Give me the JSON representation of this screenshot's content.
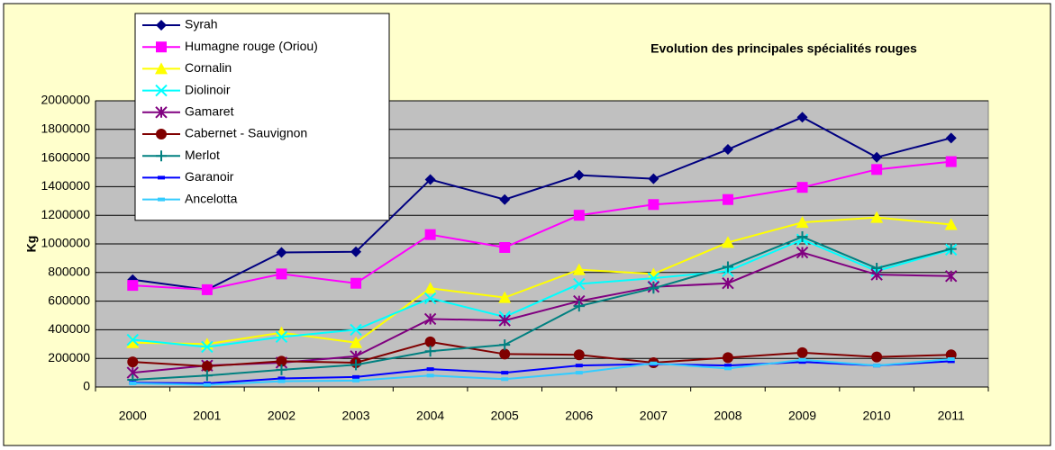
{
  "chart_data": {
    "type": "line",
    "title": "Evolution des principales spécialités rouges",
    "y_label": "Kg",
    "categories": [
      "2000",
      "2001",
      "2002",
      "2003",
      "2004",
      "2005",
      "2006",
      "2007",
      "2008",
      "2009",
      "2010",
      "2011"
    ],
    "ylim": [
      0,
      2000000
    ],
    "yticks": [
      0,
      200000,
      400000,
      600000,
      800000,
      1000000,
      1200000,
      1400000,
      1600000,
      1800000,
      2000000
    ],
    "grid": true,
    "legend": "upper-left",
    "series": [
      {
        "name": "Syrah",
        "color": "#000080",
        "marker": "diamond",
        "values": [
          750000,
          680000,
          940000,
          945000,
          1450000,
          1310000,
          1480000,
          1455000,
          1660000,
          1885000,
          1605000,
          1740000
        ]
      },
      {
        "name": "Humagne rouge (Oriou)",
        "color": "#ff00ff",
        "marker": "square",
        "values": [
          710000,
          680000,
          790000,
          725000,
          1065000,
          975000,
          1200000,
          1275000,
          1310000,
          1395000,
          1520000,
          1575000
        ]
      },
      {
        "name": "Cornalin",
        "color": "#ffff00",
        "marker": "triangle",
        "values": [
          310000,
          300000,
          380000,
          310000,
          690000,
          625000,
          820000,
          790000,
          1010000,
          1150000,
          1185000,
          1135000
        ]
      },
      {
        "name": "Diolinoir",
        "color": "#00ffff",
        "marker": "x",
        "values": [
          330000,
          280000,
          350000,
          400000,
          620000,
          490000,
          720000,
          760000,
          810000,
          1030000,
          810000,
          960000
        ]
      },
      {
        "name": "Gamaret",
        "color": "#800080",
        "marker": "star",
        "values": [
          100000,
          150000,
          170000,
          215000,
          475000,
          465000,
          600000,
          700000,
          725000,
          940000,
          785000,
          775000
        ]
      },
      {
        "name": "Cabernet - Sauvignon",
        "color": "#800000",
        "marker": "circle",
        "values": [
          175000,
          145000,
          180000,
          170000,
          315000,
          230000,
          225000,
          170000,
          205000,
          240000,
          210000,
          225000
        ]
      },
      {
        "name": "Merlot",
        "color": "#008080",
        "marker": "plus",
        "values": [
          50000,
          80000,
          120000,
          155000,
          250000,
          295000,
          565000,
          690000,
          840000,
          1050000,
          830000,
          965000
        ]
      },
      {
        "name": "Garanoir",
        "color": "#0000ff",
        "marker": "dash",
        "values": [
          30000,
          25000,
          60000,
          70000,
          125000,
          100000,
          150000,
          160000,
          150000,
          175000,
          150000,
          180000
        ]
      },
      {
        "name": "Ancelotta",
        "color": "#33ccff",
        "marker": "dash",
        "values": [
          25000,
          15000,
          40000,
          45000,
          80000,
          55000,
          100000,
          165000,
          130000,
          190000,
          150000,
          195000
        ]
      }
    ]
  }
}
